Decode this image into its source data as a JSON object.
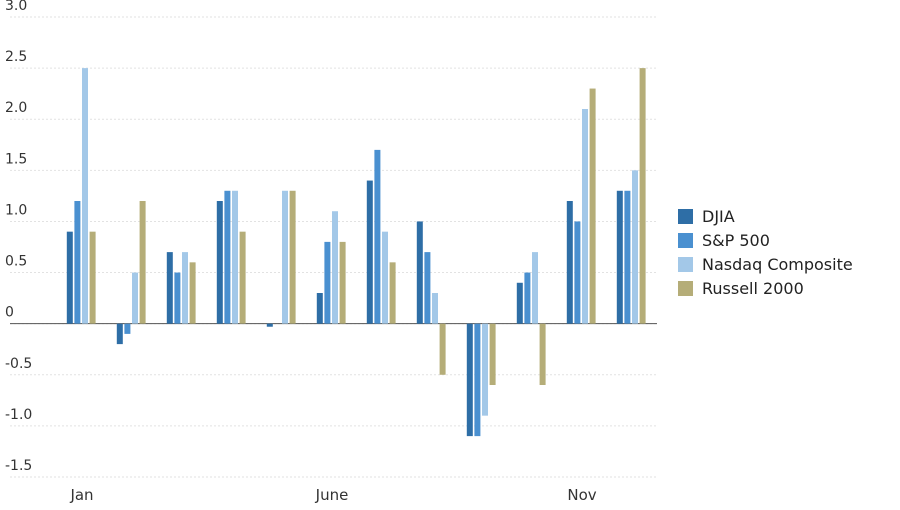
{
  "chart_data": {
    "type": "bar",
    "categories": [
      "Jan",
      null,
      null,
      null,
      null,
      "June",
      null,
      null,
      null,
      null,
      "Nov",
      null
    ],
    "series": [
      {
        "name": "DJIA",
        "color": "#2e6ea6",
        "values": [
          0.9,
          -0.2,
          0.7,
          1.2,
          -0.03,
          0.3,
          1.4,
          1.0,
          -1.1,
          0.4,
          1.2,
          1.3
        ]
      },
      {
        "name": "S&P 500",
        "color": "#4a90d0",
        "values": [
          1.2,
          -0.1,
          0.5,
          1.3,
          0,
          0.8,
          1.7,
          0.7,
          -1.1,
          0.5,
          1.0,
          1.3
        ]
      },
      {
        "name": "Nasdaq Composite",
        "color": "#a3c8e8",
        "values": [
          2.5,
          0.5,
          0.7,
          1.3,
          1.3,
          1.1,
          0.9,
          0.3,
          -0.9,
          0.7,
          2.1,
          1.5
        ]
      },
      {
        "name": "Russell 2000",
        "color": "#b5ad78",
        "values": [
          0.9,
          1.2,
          0.6,
          0.9,
          1.3,
          0.8,
          0.6,
          -0.5,
          -0.6,
          -0.6,
          2.3,
          2.5
        ]
      }
    ],
    "ylim": [
      -1.5,
      3.0
    ],
    "yticks": [
      {
        "value": 3,
        "label": "3.0"
      },
      2.5,
      {
        "value": 2,
        "label": "2.0"
      },
      1.5,
      {
        "value": 1,
        "label": "1.0"
      },
      0.5,
      0,
      -0.5,
      {
        "value": -1,
        "label": "-1.0"
      },
      -1.5
    ],
    "grid": true,
    "legend": "right"
  }
}
